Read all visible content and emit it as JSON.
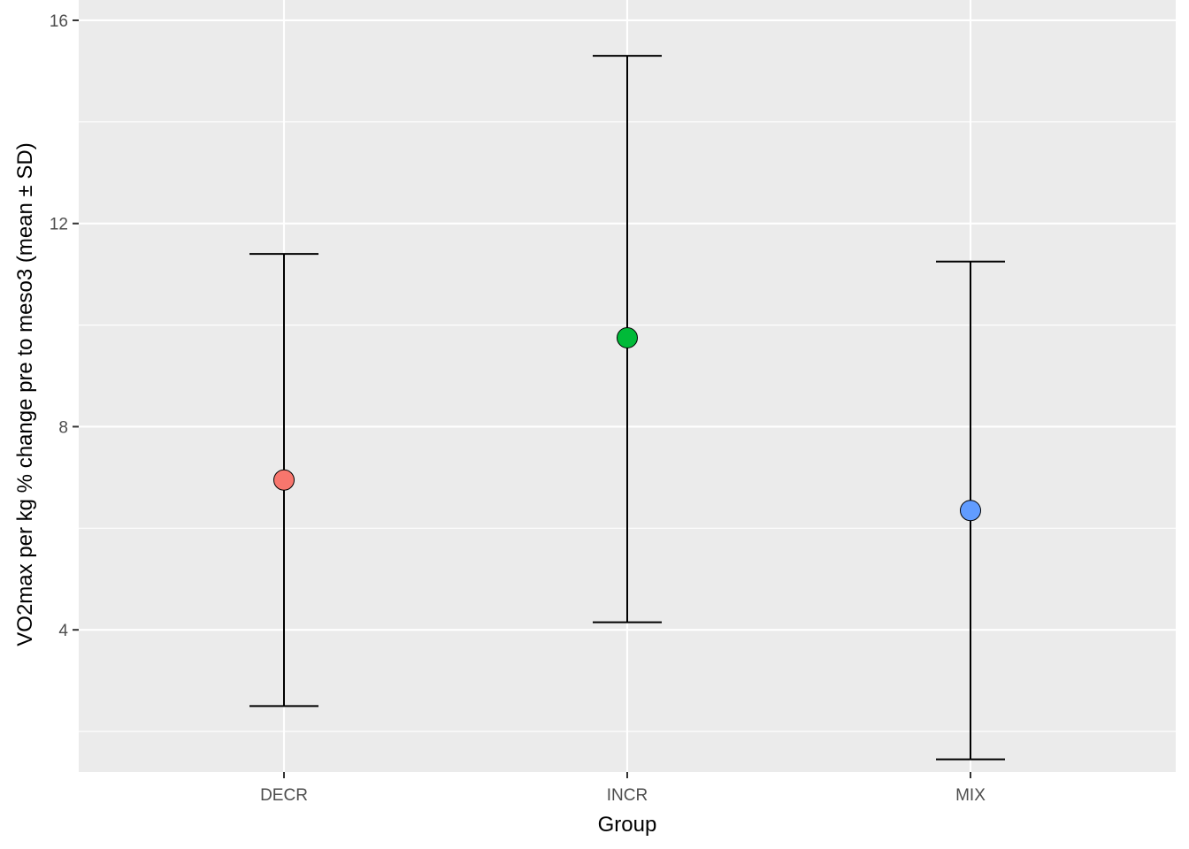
{
  "chart_data": {
    "type": "scatter",
    "title": "",
    "xlabel": "Group",
    "ylabel": "VO2max per kg % change pre to meso3 (mean ± SD)",
    "categories": [
      "DECR",
      "INCR",
      "MIX"
    ],
    "series": [
      {
        "category": "DECR",
        "mean": 6.95,
        "lower": 2.5,
        "upper": 11.4,
        "color": "#F8766D"
      },
      {
        "category": "INCR",
        "mean": 9.75,
        "lower": 4.15,
        "upper": 15.3,
        "color": "#00BA38"
      },
      {
        "category": "MIX",
        "mean": 6.35,
        "lower": 1.45,
        "upper": 11.25,
        "color": "#619CFF"
      }
    ],
    "ylim": [
      1.2,
      16.4
    ],
    "yticks": [
      4,
      8,
      12,
      16
    ],
    "ytick_labels": [
      "4",
      "8",
      "12",
      "16"
    ],
    "grid": true,
    "panel_background": "#EBEBEB",
    "gridline_color": "#FFFFFF",
    "legend": "none"
  }
}
